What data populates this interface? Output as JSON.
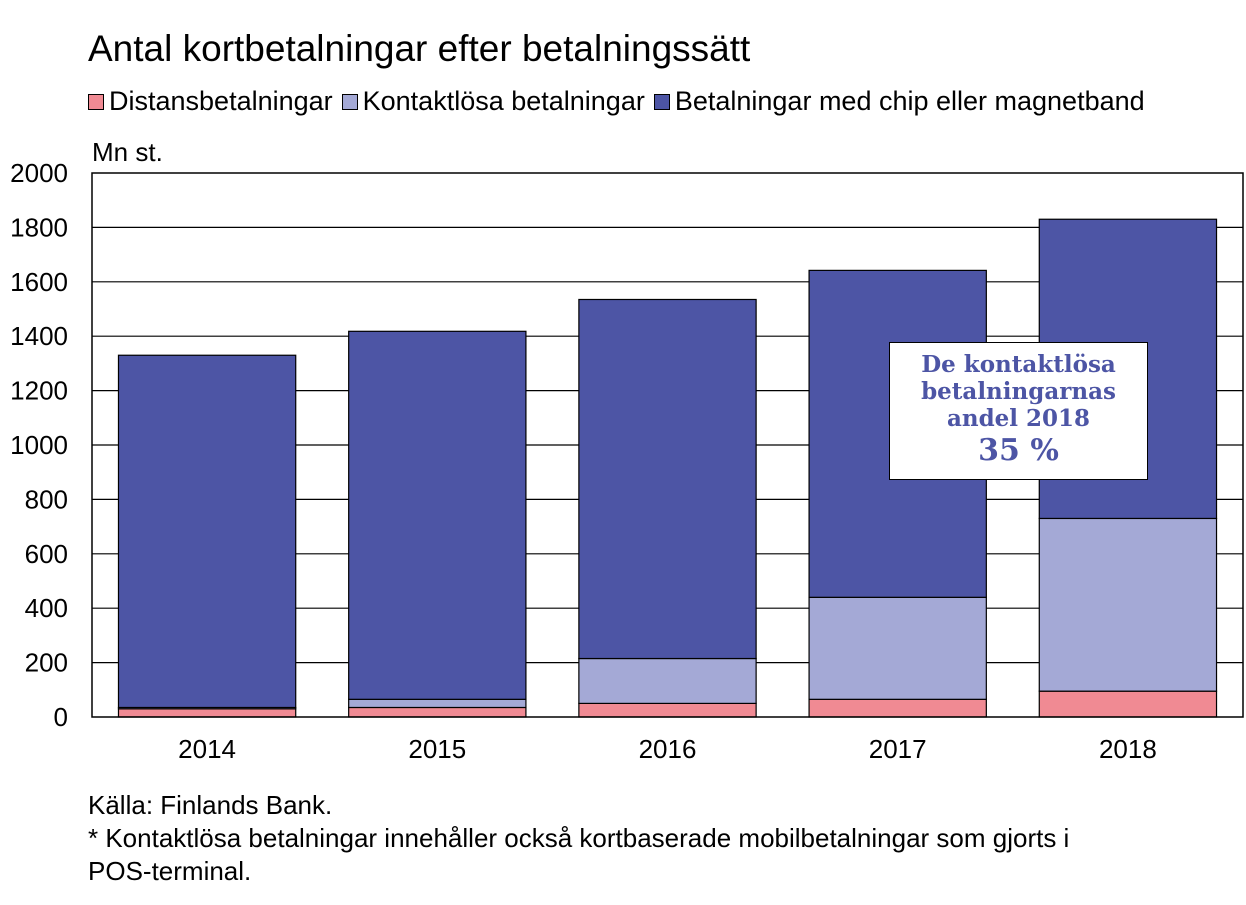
{
  "title": "Antal kortbetalningar efter betalningssätt",
  "unit_label": "Mn st.",
  "legend": [
    {
      "label": "Distansbetalningar",
      "color": "#f08a93"
    },
    {
      "label": "Kontaktlösa betalningar",
      "color": "#a4a9d6"
    },
    {
      "label": "Betalningar med chip eller magnetband",
      "color": "#4d55a5"
    }
  ],
  "annotation": {
    "line1": "De kontaktlösa",
    "line2": "betalningarnas",
    "line3": "andel 2018",
    "value": "35 %"
  },
  "source_lines": [
    "Källa: Finlands Bank.",
    "* Kontaktlösa betalningar innehåller också kortbaserade mobilbetalningar som gjorts i",
    "POS-terminal."
  ],
  "chart_data": {
    "type": "bar",
    "stacked": true,
    "categories": [
      "2014",
      "2015",
      "2016",
      "2017",
      "2018"
    ],
    "series": [
      {
        "name": "Distansbetalningar",
        "color": "#f08a93",
        "values": [
          30,
          35,
          50,
          65,
          95
        ]
      },
      {
        "name": "Kontaktlösa betalningar",
        "color": "#a4a9d6",
        "values": [
          5,
          30,
          165,
          375,
          635
        ]
      },
      {
        "name": "Betalningar med chip eller magnetband",
        "color": "#4d55a5",
        "values": [
          1295,
          1353,
          1320,
          1202,
          1100
        ]
      }
    ],
    "ylim": [
      0,
      2000
    ],
    "yticks": [
      0,
      200,
      400,
      600,
      800,
      1000,
      1200,
      1400,
      1600,
      1800,
      2000
    ],
    "grid": true
  }
}
